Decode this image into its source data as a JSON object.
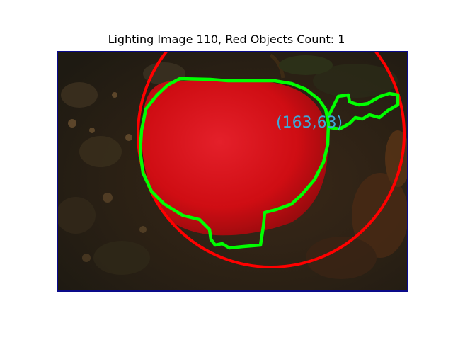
{
  "figure": {
    "title": "Lighting Image 110, Red Objects Count: 1"
  },
  "image": {
    "centroid_label": "(163,63)",
    "colors": {
      "frame": "#0a0a8a",
      "circle": "#ff0000",
      "contour": "#00ff00",
      "label": "#3fa9d6",
      "object": "#d90e14",
      "background": "#2a2014"
    }
  }
}
